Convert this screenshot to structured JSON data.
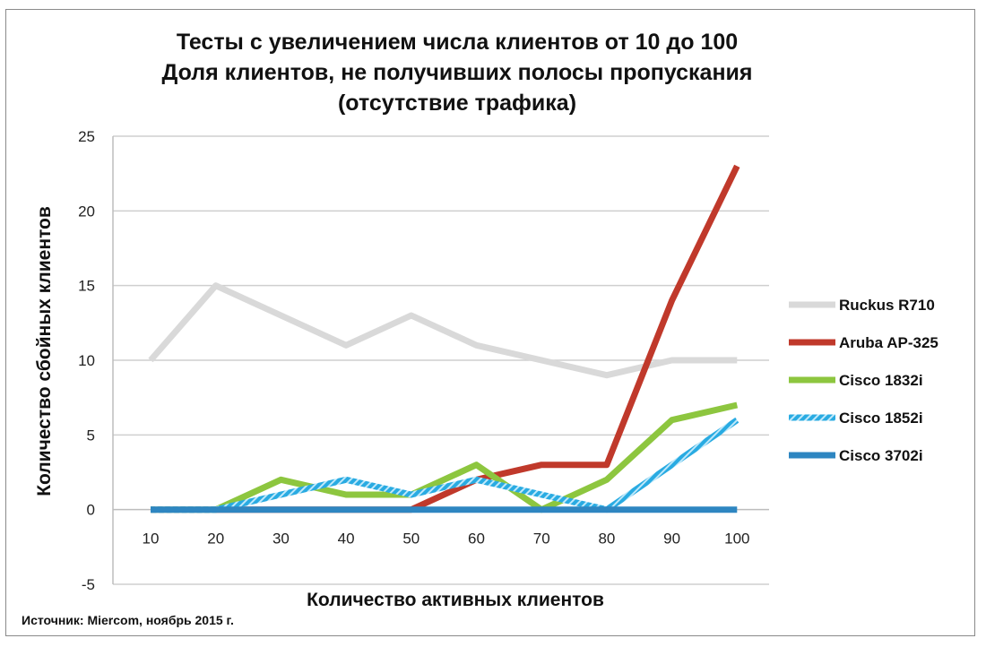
{
  "source_note": "Источник: Miercom, ноябрь 2015 г.",
  "chart_data": {
    "type": "line",
    "title_lines": [
      "Тесты с увеличением числа клиентов от 10 до 100",
      "Доля клиентов, не получивших полосы пропускания",
      "(отсутствие трафика)"
    ],
    "xlabel": "Количество активных клиентов",
    "ylabel": "Количество сбойных клиентов",
    "categories": [
      "10",
      "20",
      "30",
      "40",
      "50",
      "60",
      "70",
      "80",
      "90",
      "100"
    ],
    "y_ticks": [
      "-5",
      "0",
      "5",
      "10",
      "15",
      "20",
      "25"
    ],
    "ylim": [
      -5,
      25
    ],
    "grid": true,
    "legend_position": "right",
    "series": [
      {
        "name": "Ruckus R710",
        "color": "#d9d9d9",
        "values": [
          10,
          15,
          13,
          11,
          13,
          11,
          10,
          9,
          10,
          10
        ]
      },
      {
        "name": "Aruba AP-325",
        "color": "#c0392b",
        "values": [
          0,
          0,
          0,
          0,
          0,
          2,
          3,
          3,
          14,
          23
        ]
      },
      {
        "name": "Cisco 1832i",
        "color": "#8dc63f",
        "values": [
          0,
          0,
          2,
          1,
          1,
          3,
          0,
          2,
          6,
          7
        ]
      },
      {
        "name": "Cisco 1852i",
        "color": "#29abe2",
        "values": [
          0,
          0,
          1,
          2,
          1,
          2,
          1,
          0,
          3,
          6
        ]
      },
      {
        "name": "Cisco 3702i",
        "color": "#2e86c1",
        "values": [
          0,
          0,
          0,
          0,
          0,
          0,
          0,
          0,
          0,
          0
        ]
      }
    ]
  }
}
